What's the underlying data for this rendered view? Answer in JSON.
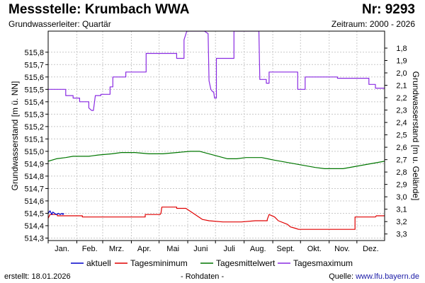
{
  "header": {
    "title": "Messstelle: Krumbach WWA",
    "number": "Nr: 9293",
    "aquifer": "Grundwasserleiter: Quartär",
    "period": "Zeitraum: 2000 - 2026"
  },
  "footer": {
    "created": "erstellt:  18.01.2026",
    "note": "- Rohdaten -",
    "source_label": "Quelle: ",
    "source_url": "www.lfu.bayern.de"
  },
  "chart_data": {
    "type": "line",
    "xlabel": "",
    "ylabel": "Grundwasserstand [m ü. NN]",
    "y2label": "Grundwasserstand [m u. Gelände]",
    "x_unit": "day of year",
    "xlim": [
      1,
      365
    ],
    "ylim": [
      514.28,
      515.97
    ],
    "y2lim": [
      3.353,
      1.663
    ],
    "grid": true,
    "legend_position": "bottom",
    "x_tick_labels": [
      {
        "label": "Jan.",
        "x": 16
      },
      {
        "label": "Feb.",
        "x": 46
      },
      {
        "label": "Mrz.",
        "x": 75
      },
      {
        "label": "Apr.",
        "x": 105
      },
      {
        "label": "Mai",
        "x": 136
      },
      {
        "label": "Juni",
        "x": 166
      },
      {
        "label": "Juli",
        "x": 197
      },
      {
        "label": "Aug.",
        "x": 228
      },
      {
        "label": "Sept.",
        "x": 258
      },
      {
        "label": "Okt.",
        "x": 289
      },
      {
        "label": "Nov.",
        "x": 319
      },
      {
        "label": "Dez.",
        "x": 350
      }
    ],
    "y_ticks": [
      "514,3",
      "514,4",
      "514,5",
      "514,6",
      "514,7",
      "514,8",
      "514,9",
      "515,0",
      "515,1",
      "515,2",
      "515,3",
      "515,4",
      "515,5",
      "515,6",
      "515,7",
      "515,8"
    ],
    "y2_ticks": [
      "1,8",
      "1,9",
      "2,0",
      "2,1",
      "2,2",
      "2,3",
      "2,4",
      "2,5",
      "2,6",
      "2,7",
      "2,8",
      "2,9",
      "3,0",
      "3,1",
      "3,2",
      "3,3"
    ],
    "series": [
      {
        "name": "aktuell",
        "color": "#0000cc",
        "points": [
          [
            1,
            514.5
          ],
          [
            3,
            514.52
          ],
          [
            5,
            514.49
          ],
          [
            6,
            514.51
          ],
          [
            8,
            514.5
          ],
          [
            10,
            514.49
          ],
          [
            12,
            514.5
          ],
          [
            14,
            514.49
          ],
          [
            16,
            514.5
          ],
          [
            17,
            514.49
          ],
          [
            18,
            514.5
          ]
        ]
      },
      {
        "name": "Tagesminimum",
        "color": "#e00000",
        "points": [
          [
            1,
            514.46
          ],
          [
            3,
            514.49
          ],
          [
            11,
            514.49
          ],
          [
            11,
            514.48
          ],
          [
            38,
            514.48
          ],
          [
            38,
            514.47
          ],
          [
            106,
            514.47
          ],
          [
            106,
            514.49
          ],
          [
            122,
            514.49
          ],
          [
            123,
            514.5
          ],
          [
            124,
            514.55
          ],
          [
            140,
            514.55
          ],
          [
            140,
            514.54
          ],
          [
            150,
            514.54
          ],
          [
            160,
            514.49
          ],
          [
            168,
            514.45
          ],
          [
            175,
            514.44
          ],
          [
            190,
            514.43
          ],
          [
            210,
            514.43
          ],
          [
            225,
            514.44
          ],
          [
            238,
            514.44
          ],
          [
            238,
            514.45
          ],
          [
            240,
            514.49
          ],
          [
            246,
            514.47
          ],
          [
            250,
            514.44
          ],
          [
            260,
            514.41
          ],
          [
            263,
            514.39
          ],
          [
            268,
            514.38
          ],
          [
            272,
            514.37
          ],
          [
            333,
            514.37
          ],
          [
            333,
            514.47
          ],
          [
            355,
            514.47
          ],
          [
            356,
            514.48
          ],
          [
            365,
            514.48
          ]
        ]
      },
      {
        "name": "Tagesmittelwert",
        "color": "#007700",
        "points": [
          [
            1,
            514.92
          ],
          [
            10,
            514.94
          ],
          [
            20,
            514.95
          ],
          [
            28,
            514.96
          ],
          [
            45,
            514.96
          ],
          [
            55,
            514.97
          ],
          [
            70,
            514.98
          ],
          [
            80,
            514.99
          ],
          [
            95,
            514.99
          ],
          [
            110,
            514.98
          ],
          [
            125,
            514.98
          ],
          [
            140,
            514.99
          ],
          [
            155,
            515.0
          ],
          [
            165,
            515.0
          ],
          [
            175,
            514.98
          ],
          [
            185,
            514.96
          ],
          [
            195,
            514.94
          ],
          [
            205,
            514.94
          ],
          [
            215,
            514.95
          ],
          [
            232,
            514.95
          ],
          [
            245,
            514.93
          ],
          [
            260,
            514.91
          ],
          [
            275,
            514.89
          ],
          [
            290,
            514.87
          ],
          [
            300,
            514.86
          ],
          [
            320,
            514.86
          ],
          [
            335,
            514.88
          ],
          [
            350,
            514.9
          ],
          [
            365,
            514.92
          ]
        ]
      },
      {
        "name": "Tagesmaximum",
        "color": "#8a2be2",
        "points": [
          [
            1,
            515.5
          ],
          [
            20,
            515.5
          ],
          [
            20,
            515.45
          ],
          [
            28,
            515.45
          ],
          [
            28,
            515.43
          ],
          [
            35,
            515.43
          ],
          [
            35,
            515.4
          ],
          [
            45,
            515.4
          ],
          [
            45,
            515.35
          ],
          [
            48,
            515.33
          ],
          [
            50,
            515.33
          ],
          [
            52,
            515.45
          ],
          [
            58,
            515.45
          ],
          [
            58,
            515.46
          ],
          [
            68,
            515.46
          ],
          [
            68,
            515.52
          ],
          [
            71,
            515.52
          ],
          [
            71,
            515.6
          ],
          [
            85,
            515.6
          ],
          [
            85,
            515.64
          ],
          [
            107,
            515.64
          ],
          [
            107,
            515.79
          ],
          [
            140,
            515.79
          ],
          [
            140,
            515.75
          ],
          [
            148,
            515.75
          ],
          [
            148,
            515.9
          ],
          [
            151,
            515.97
          ],
          [
            170,
            515.97
          ],
          [
            174,
            515.95
          ],
          [
            175,
            515.57
          ],
          [
            177,
            515.5
          ],
          [
            179,
            515.48
          ],
          [
            180,
            515.48
          ],
          [
            181,
            515.43
          ],
          [
            183,
            515.43
          ],
          [
            183,
            515.75
          ],
          [
            202,
            515.75
          ],
          [
            202,
            515.97
          ],
          [
            229,
            515.97
          ],
          [
            230,
            515.58
          ],
          [
            237,
            515.58
          ],
          [
            237,
            515.55
          ],
          [
            240,
            515.55
          ],
          [
            240,
            515.64
          ],
          [
            271,
            515.64
          ],
          [
            271,
            515.5
          ],
          [
            279,
            515.5
          ],
          [
            279,
            515.6
          ],
          [
            314,
            515.6
          ],
          [
            314,
            515.59
          ],
          [
            348,
            515.59
          ],
          [
            348,
            515.54
          ],
          [
            355,
            515.54
          ],
          [
            355,
            515.51
          ],
          [
            365,
            515.51
          ]
        ]
      }
    ]
  }
}
